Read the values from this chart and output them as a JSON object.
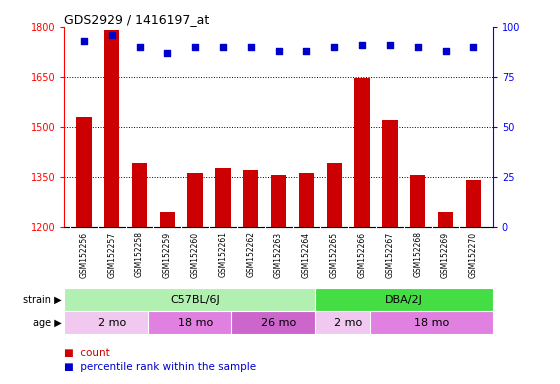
{
  "title": "GDS2929 / 1416197_at",
  "samples": [
    "GSM152256",
    "GSM152257",
    "GSM152258",
    "GSM152259",
    "GSM152260",
    "GSM152261",
    "GSM152262",
    "GSM152263",
    "GSM152264",
    "GSM152265",
    "GSM152266",
    "GSM152267",
    "GSM152268",
    "GSM152269",
    "GSM152270"
  ],
  "counts": [
    1530,
    1790,
    1390,
    1245,
    1360,
    1375,
    1370,
    1355,
    1360,
    1390,
    1645,
    1520,
    1355,
    1245,
    1340
  ],
  "percentile_ranks": [
    93,
    96,
    90,
    87,
    90,
    90,
    90,
    88,
    88,
    90,
    91,
    91,
    90,
    88,
    90
  ],
  "bar_color": "#cc0000",
  "dot_color": "#0000cc",
  "ylim_left": [
    1200,
    1800
  ],
  "ylim_right": [
    0,
    100
  ],
  "yticks_left": [
    1200,
    1350,
    1500,
    1650,
    1800
  ],
  "yticks_right": [
    0,
    25,
    50,
    75,
    100
  ],
  "strain_groups": [
    {
      "label": "C57BL/6J",
      "start": 0,
      "end": 9,
      "color": "#b2f0b2"
    },
    {
      "label": "DBA/2J",
      "start": 9,
      "end": 15,
      "color": "#44dd44"
    }
  ],
  "age_groups": [
    {
      "label": "2 mo",
      "start": 0,
      "end": 3,
      "color": "#f0c8f0"
    },
    {
      "label": "18 mo",
      "start": 3,
      "end": 6,
      "color": "#e080e0"
    },
    {
      "label": "26 mo",
      "start": 6,
      "end": 9,
      "color": "#cc66cc"
    },
    {
      "label": "2 mo",
      "start": 9,
      "end": 11,
      "color": "#f0c8f0"
    },
    {
      "label": "18 mo",
      "start": 11,
      "end": 15,
      "color": "#e080e0"
    }
  ],
  "main_bg": "#ffffff",
  "xlabel_bg": "#d0d0d0",
  "fig_bg": "#ffffff"
}
